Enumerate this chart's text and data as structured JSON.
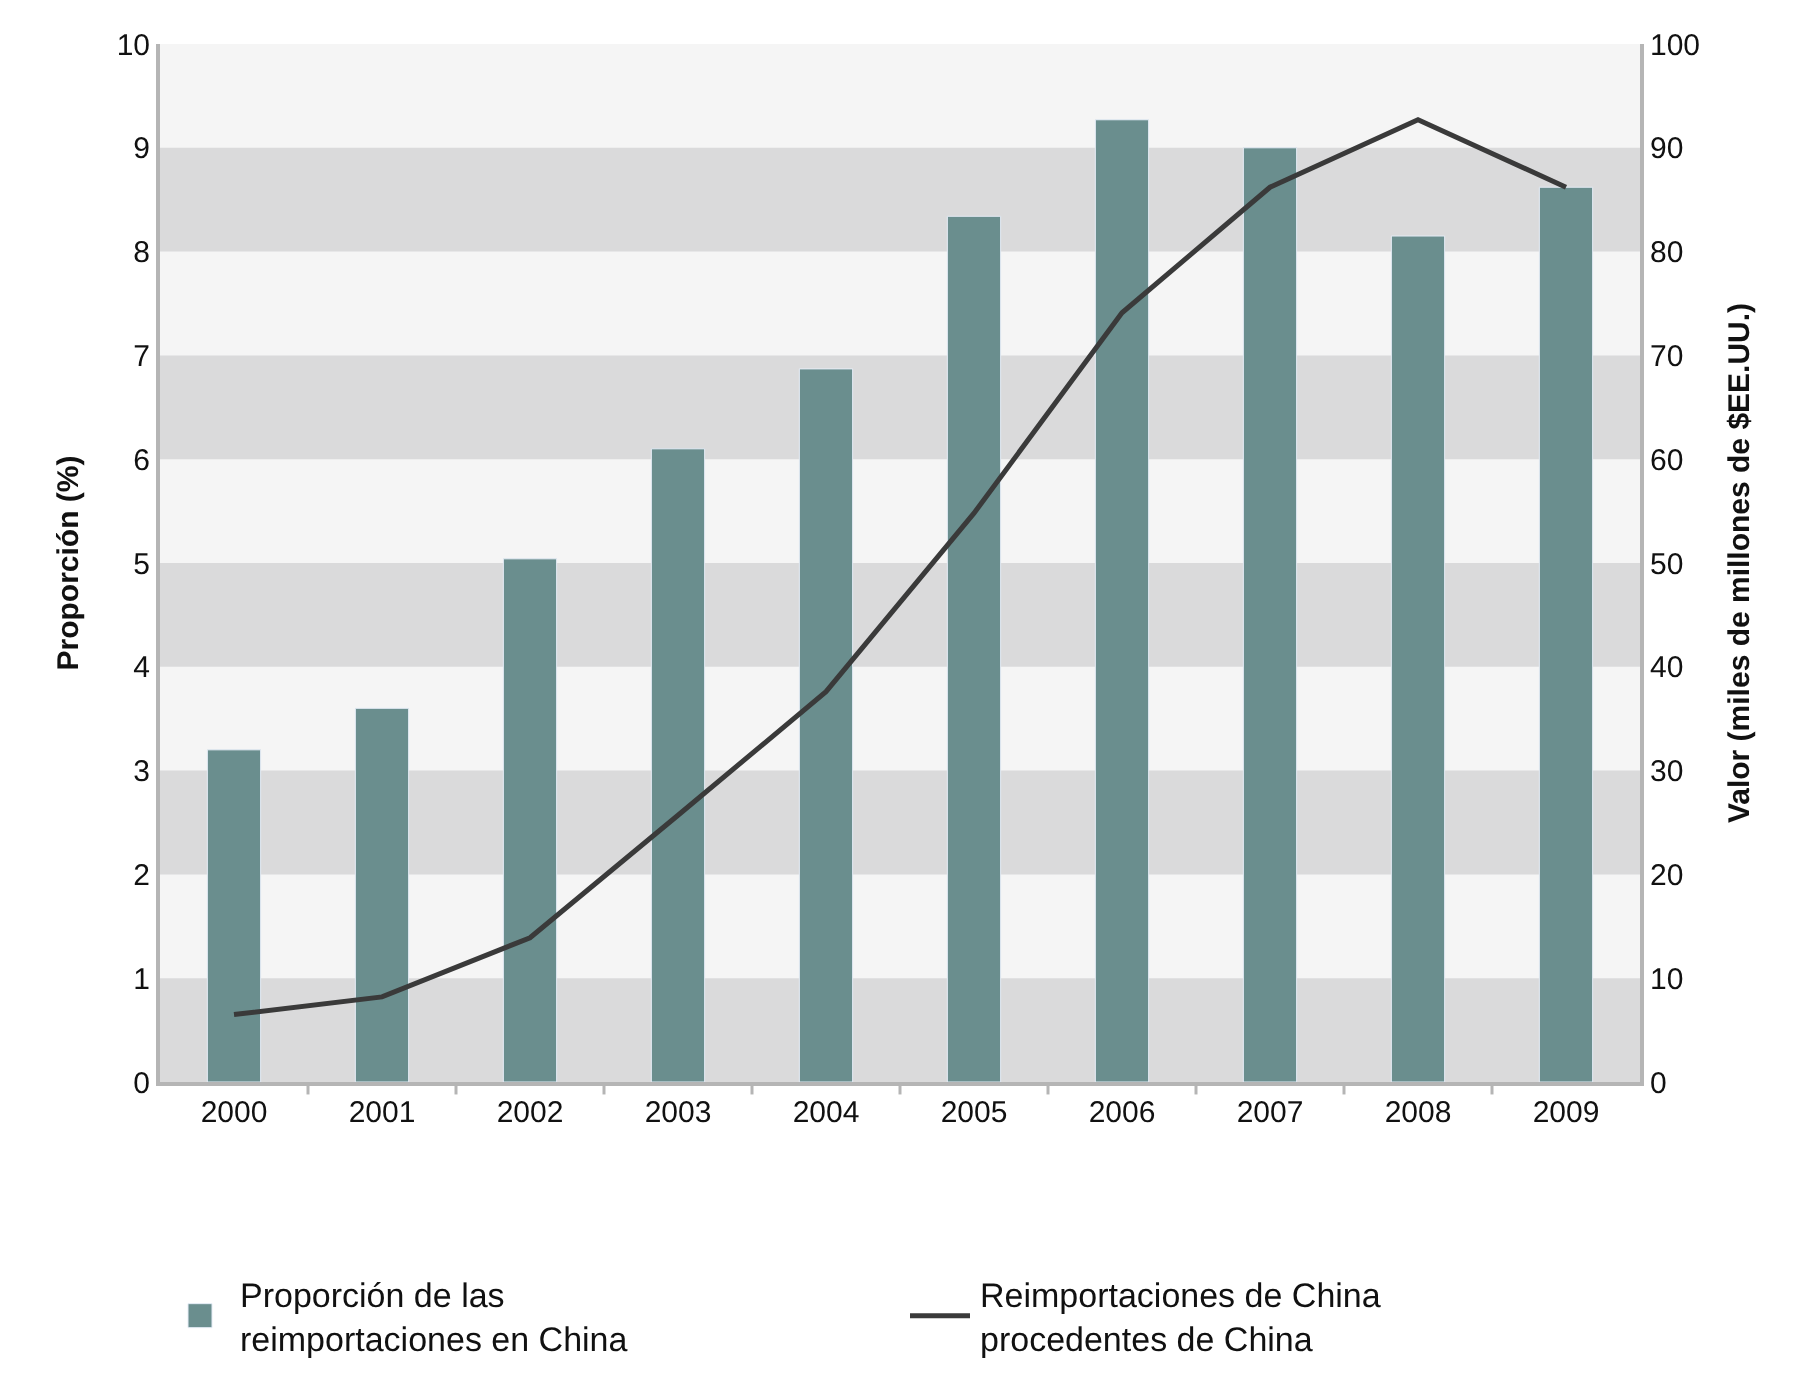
{
  "chart_data": {
    "type": "bar",
    "ylabel": "Proporción (%)",
    "y2label": "Valor (miles de millones de $EE.UU.)",
    "categories": [
      "2000",
      "2001",
      "2002",
      "2003",
      "2004",
      "2005",
      "2006",
      "2007",
      "2008",
      "2009"
    ],
    "series": [
      {
        "name": "Proporción de las reimportaciones en China",
        "color": "#6a8e8e",
        "values": [
          3.2,
          3.6,
          5.04,
          6.1,
          6.87,
          8.34,
          9.27,
          9.0,
          8.15,
          8.62
        ]
      },
      {
        "name": "Reimportaciones de China procedentes de China",
        "type": "line",
        "axis": "y2",
        "color": "#3a3a3a",
        "line_style": "solid",
        "values": [
          6.5,
          8.2,
          13.9,
          25.7,
          37.6,
          54.8,
          74.1,
          86.2,
          92.7,
          86.2
        ]
      }
    ],
    "ylim": [
      0,
      10
    ],
    "yticks": [
      0,
      1,
      2,
      3,
      4,
      5,
      6,
      7,
      8,
      9,
      10
    ],
    "y2lim": [
      0,
      100
    ],
    "y2ticks": [
      0,
      10,
      20,
      30,
      40,
      50,
      60,
      70,
      80,
      90,
      100
    ],
    "bands": [
      {
        "axis": "y",
        "from": 0,
        "to": 1,
        "label": null,
        "color": "#dadadb"
      },
      {
        "axis": "y",
        "from": 2,
        "to": 3,
        "label": null,
        "color": "#dadadb"
      },
      {
        "axis": "y",
        "from": 4,
        "to": 5,
        "label": null,
        "color": "#dadadb"
      },
      {
        "axis": "y",
        "from": 6,
        "to": 7,
        "label": null,
        "color": "#dadadb"
      },
      {
        "axis": "y",
        "from": 8,
        "to": 9,
        "label": null,
        "color": "#dadadb"
      }
    ],
    "grid": false,
    "legend": "bottom",
    "marker": "none"
  }
}
